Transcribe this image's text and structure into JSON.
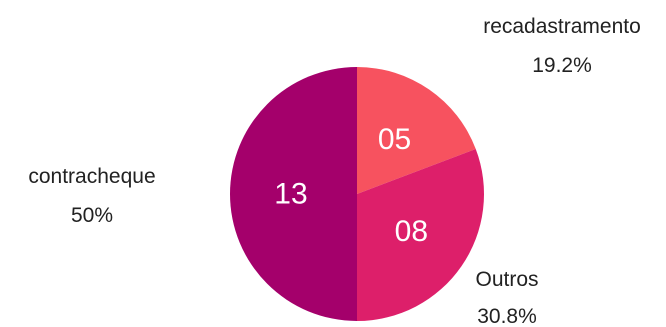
{
  "chart_data": {
    "type": "pie",
    "slices": [
      {
        "label": "recadastramento",
        "value": 5,
        "value_label": "05",
        "percent_label": "19.2%",
        "color": "#f7525f"
      },
      {
        "label": "Outros",
        "value": 8,
        "value_label": "08",
        "percent_label": "30.8%",
        "color": "#dd1f6a"
      },
      {
        "label": "contracheque",
        "value": 13,
        "value_label": "13",
        "percent_label": "50%",
        "color": "#a4006b"
      }
    ],
    "start_angle": "12 o'clock",
    "direction": "clockwise",
    "legend": "none"
  }
}
